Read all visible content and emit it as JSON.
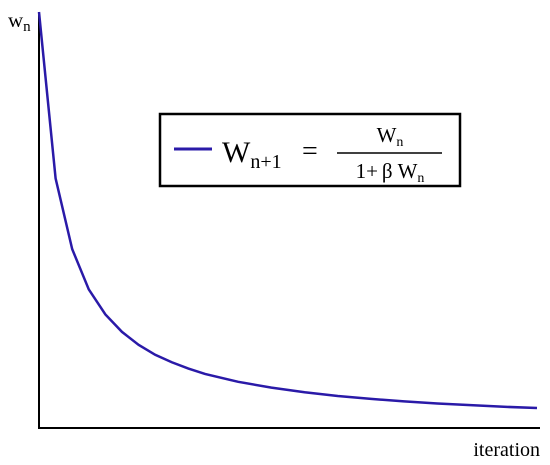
{
  "chart_data": {
    "type": "line",
    "title": "",
    "xlabel": "iteration",
    "ylabel": "w",
    "ylabel_subscript": "n",
    "xlim": [
      0,
      30
    ],
    "ylim": [
      0,
      1
    ],
    "axes_ticks": false,
    "grid": false,
    "legend_position": "top-right",
    "series": [
      {
        "name": "W_{n+1} = W_n / (1+β W_n)",
        "color": "#2a1aa8",
        "x": [
          0,
          1,
          2,
          3,
          4,
          5,
          6,
          7,
          8,
          9,
          10,
          12,
          14,
          16,
          18,
          20,
          22,
          24,
          26,
          28,
          30
        ],
        "y": [
          1.0,
          0.6,
          0.43,
          0.333,
          0.273,
          0.231,
          0.2,
          0.176,
          0.158,
          0.143,
          0.13,
          0.111,
          0.097,
          0.086,
          0.077,
          0.07,
          0.064,
          0.059,
          0.055,
          0.051,
          0.048
        ]
      }
    ]
  },
  "legend": {
    "lhs_main": "W",
    "lhs_sub": "n+1",
    "equals": "=",
    "numerator_main": "W",
    "numerator_sub": "n",
    "denominator_prefix": "1+",
    "denominator_beta": "β",
    "denominator_main": "W",
    "denominator_sub": "n"
  }
}
